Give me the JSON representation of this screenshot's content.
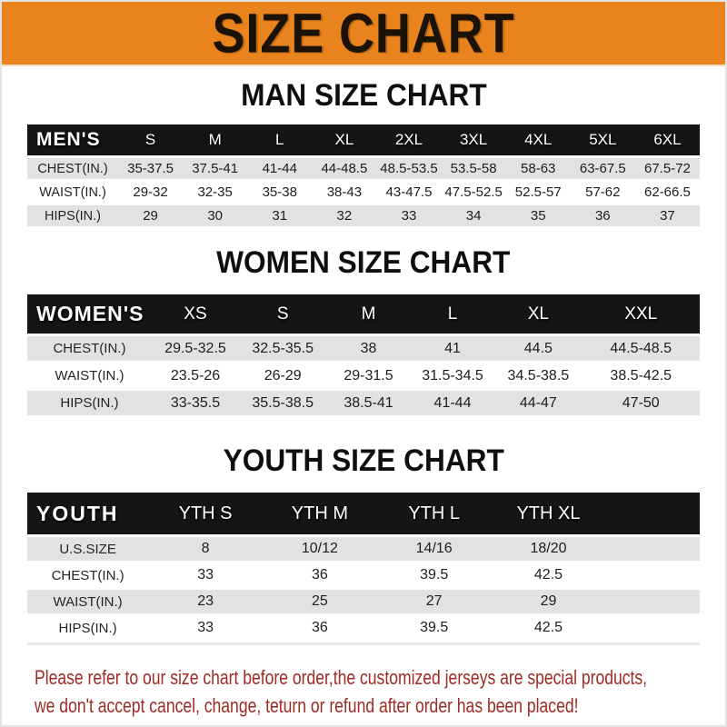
{
  "banner": {
    "title": "SIZE CHART"
  },
  "colors": {
    "banner_orange": "#E9831E",
    "header_bar": "#151515",
    "row_gray": "#E2E2E2",
    "footer_red": "#9E2B24"
  },
  "tables": {
    "men": {
      "heading": "MAN SIZE CHART",
      "header_label": "MEN'S",
      "columns": [
        "S",
        "M",
        "L",
        "XL",
        "2XL",
        "3XL",
        "4XL",
        "5XL",
        "6XL"
      ],
      "rows": [
        {
          "label": "CHEST(IN.)",
          "values": [
            "35-37.5",
            "37.5-41",
            "41-44",
            "44-48.5",
            "48.5-53.5",
            "53.5-58",
            "58-63",
            "63-67.5",
            "67.5-72"
          ]
        },
        {
          "label": "WAIST(IN.)",
          "values": [
            "29-32",
            "32-35",
            "35-38",
            "38-43",
            "43-47.5",
            "47.5-52.5",
            "52.5-57",
            "57-62",
            "62-66.5"
          ]
        },
        {
          "label": "HIPS(IN.)",
          "values": [
            "29",
            "30",
            "31",
            "32",
            "33",
            "34",
            "35",
            "36",
            "37"
          ]
        }
      ]
    },
    "women": {
      "heading": "WOMEN SIZE CHART",
      "header_label": "WOMEN'S",
      "columns": [
        "XS",
        "S",
        "M",
        "L",
        "XL",
        "XXL"
      ],
      "rows": [
        {
          "label": "CHEST(IN.)",
          "values": [
            "29.5-32.5",
            "32.5-35.5",
            "38",
            "41",
            "44.5",
            "44.5-48.5"
          ]
        },
        {
          "label": "WAIST(IN.)",
          "values": [
            "23.5-26",
            "26-29",
            "29-31.5",
            "31.5-34.5",
            "34.5-38.5",
            "38.5-42.5"
          ]
        },
        {
          "label": "HIPS(IN.)",
          "values": [
            "33-35.5",
            "35.5-38.5",
            "38.5-41",
            "41-44",
            "44-47",
            "47-50"
          ]
        }
      ]
    },
    "youth": {
      "heading": "YOUTH SIZE CHART",
      "header_label": "YOUTH",
      "columns": [
        "YTH S",
        "YTH M",
        "YTH L",
        "YTH XL"
      ],
      "rows": [
        {
          "label": "U.S.SIZE",
          "values": [
            "8",
            "10/12",
            "14/16",
            "18/20"
          ]
        },
        {
          "label": "CHEST(IN.)",
          "values": [
            "33",
            "36",
            "39.5",
            "42.5"
          ]
        },
        {
          "label": "WAIST(IN.)",
          "values": [
            "23",
            "25",
            "27",
            "29"
          ]
        },
        {
          "label": "HIPS(IN.)",
          "values": [
            "33",
            "36",
            "39.5",
            "42.5"
          ]
        }
      ]
    }
  },
  "footer": {
    "line1": "Please refer to our size chart before order,the customized jerseys are special products,",
    "line2": "we don't accept cancel, change, teturn or refund after order has been placed!"
  }
}
